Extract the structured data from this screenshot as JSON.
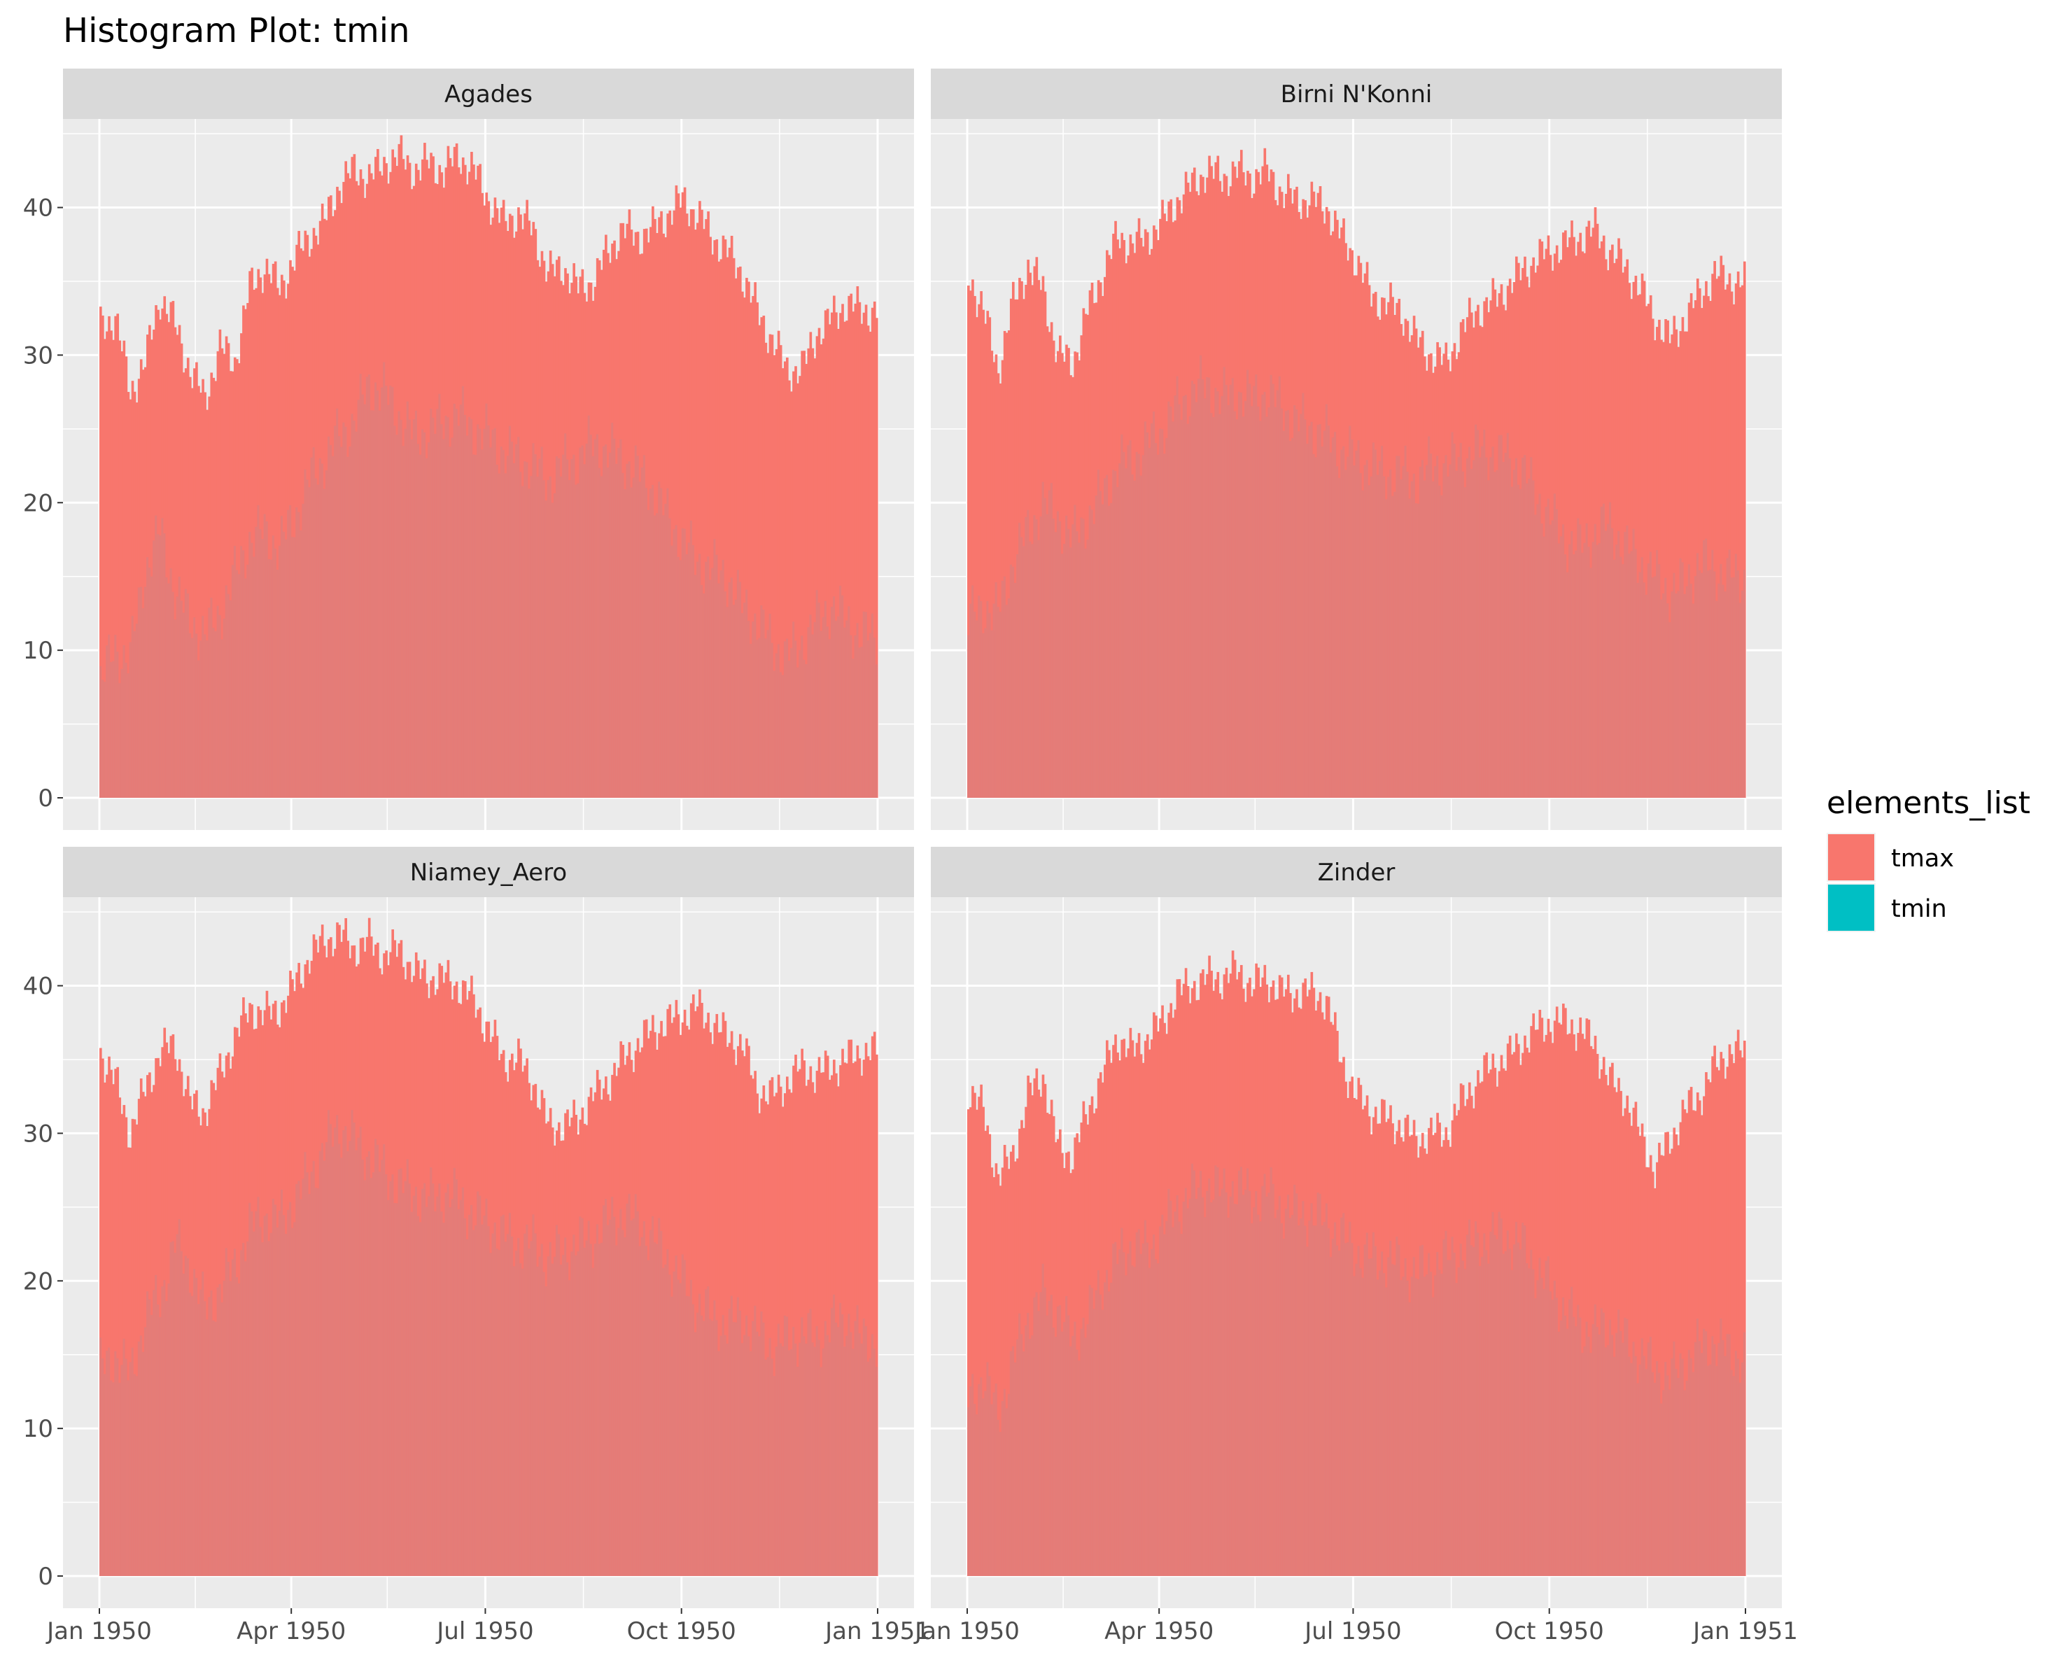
{
  "chart_data": {
    "type": "bar",
    "title": "Histogram Plot: tmin",
    "xlabel": "",
    "ylabel": "",
    "x_range": [
      "1950-01-01",
      "1951-01-01"
    ],
    "ylim": [
      0,
      46
    ],
    "y_ticks": [
      0,
      10,
      20,
      30,
      40
    ],
    "y_tick_labels": [
      "0",
      "10",
      "20",
      "30",
      "40"
    ],
    "x_ticks": [
      "1950-01-01",
      "1950-04-01",
      "1950-07-01",
      "1950-10-01",
      "1951-01-01"
    ],
    "x_tick_labels_left": [
      "Jan 1950",
      "Apr 1950",
      "Jul 1950",
      "Oct 1950",
      "Jan 1951"
    ],
    "x_tick_labels_right": [
      "Jan 1950",
      "Apr 1950",
      "Jul 1950",
      "Oct 1950",
      "Jan 1951"
    ],
    "grid": true,
    "facet_layout": "2x2",
    "legend": {
      "title": "elements_list",
      "position": "right",
      "items": [
        {
          "label": "tmax",
          "color": "#F8766D"
        },
        {
          "label": "tmin",
          "color": "#00BFC4"
        }
      ]
    },
    "series_colors": {
      "tmax": "#F8766D",
      "tmin_overlay": "#E07E7A"
    },
    "facets": [
      {
        "name": "Agades",
        "tmax_weekly": [
          32.0,
          32.5,
          27.5,
          29.5,
          34.0,
          32.0,
          29.0,
          27.0,
          30.5,
          29.5,
          34.5,
          36.0,
          34.5,
          36.5,
          38.0,
          39.0,
          41.5,
          42.5,
          42.0,
          43.0,
          43.5,
          42.5,
          43.0,
          42.5,
          43.5,
          42.5,
          40.5,
          39.0,
          39.5,
          38.5,
          35.5,
          36.0,
          34.5,
          35.0,
          37.0,
          38.5,
          38.0,
          38.5,
          39.5,
          40.5,
          39.5,
          38.0,
          37.0,
          35.5,
          33.0,
          31.0,
          29.0,
          29.0,
          31.5,
          32.5,
          33.5,
          33.0
        ],
        "tmin_weekly": [
          8.0,
          10.0,
          9.5,
          15.5,
          18.0,
          14.0,
          12.0,
          11.0,
          12.5,
          15.0,
          17.5,
          18.0,
          17.0,
          19.0,
          21.5,
          23.0,
          24.5,
          25.5,
          28.0,
          27.5,
          26.0,
          24.5,
          25.0,
          25.5,
          26.0,
          25.0,
          24.5,
          23.5,
          23.0,
          22.5,
          21.5,
          22.5,
          23.0,
          24.0,
          23.5,
          23.0,
          22.0,
          21.0,
          19.0,
          17.5,
          16.0,
          15.5,
          15.0,
          13.0,
          12.0,
          10.5,
          9.5,
          10.5,
          12.0,
          13.0,
          12.0,
          11.0
        ]
      },
      {
        "name": "Birni N'Konni",
        "tmax_weekly": [
          35.5,
          33.0,
          29.0,
          33.5,
          36.0,
          34.5,
          30.0,
          29.5,
          33.0,
          35.5,
          38.0,
          37.5,
          38.0,
          39.0,
          40.5,
          41.5,
          42.5,
          42.0,
          42.5,
          42.0,
          42.5,
          41.0,
          40.5,
          40.5,
          40.0,
          38.0,
          36.5,
          34.0,
          33.5,
          33.0,
          31.0,
          30.0,
          29.5,
          31.5,
          33.0,
          33.5,
          34.5,
          35.5,
          36.5,
          37.0,
          37.5,
          38.0,
          38.5,
          37.0,
          36.0,
          34.5,
          32.5,
          31.0,
          32.5,
          34.0,
          35.5,
          35.0
        ],
        "tmin_weekly": [
          12.0,
          13.0,
          12.5,
          16.0,
          18.0,
          20.0,
          19.0,
          17.5,
          19.0,
          20.5,
          22.5,
          23.0,
          24.0,
          25.0,
          26.5,
          27.5,
          28.0,
          27.0,
          27.5,
          27.0,
          27.5,
          26.5,
          25.5,
          25.0,
          24.5,
          23.5,
          23.0,
          22.5,
          22.0,
          22.0,
          21.5,
          22.5,
          22.5,
          23.0,
          23.5,
          23.5,
          23.0,
          22.5,
          20.5,
          19.0,
          17.5,
          17.0,
          18.0,
          18.5,
          17.0,
          16.0,
          15.0,
          14.0,
          14.5,
          16.0,
          15.5,
          15.0
        ]
      },
      {
        "name": "Niamey_Aero",
        "tmax_weekly": [
          35.5,
          33.5,
          30.0,
          33.0,
          35.5,
          36.0,
          32.0,
          31.5,
          34.0,
          36.5,
          38.5,
          38.0,
          38.5,
          40.0,
          42.0,
          43.0,
          43.5,
          42.5,
          43.0,
          42.0,
          42.5,
          41.0,
          40.5,
          40.5,
          40.0,
          39.0,
          37.0,
          35.0,
          35.0,
          33.5,
          30.5,
          30.5,
          31.0,
          32.5,
          33.5,
          35.0,
          36.0,
          37.0,
          37.5,
          38.0,
          38.5,
          37.5,
          36.5,
          36.0,
          33.0,
          32.5,
          33.5,
          34.5,
          34.0,
          34.5,
          35.0,
          35.5
        ],
        "tmin_weekly": [
          14.0,
          15.0,
          13.5,
          17.5,
          19.0,
          22.5,
          21.0,
          18.0,
          19.5,
          21.0,
          23.5,
          24.5,
          24.0,
          25.5,
          27.0,
          29.0,
          30.5,
          29.5,
          28.5,
          27.5,
          26.5,
          26.0,
          25.5,
          26.0,
          25.5,
          24.5,
          24.0,
          23.0,
          22.5,
          22.5,
          21.5,
          22.0,
          22.5,
          23.0,
          24.0,
          24.5,
          24.0,
          23.0,
          21.5,
          20.0,
          18.5,
          17.5,
          17.0,
          17.5,
          16.5,
          15.5,
          16.0,
          16.5,
          16.0,
          17.0,
          17.5,
          16.0
        ]
      },
      {
        "name": "Zinder",
        "tmax_weekly": [
          33.0,
          31.5,
          27.0,
          28.5,
          32.5,
          34.0,
          29.0,
          28.5,
          31.5,
          34.0,
          36.5,
          35.5,
          36.5,
          37.5,
          39.5,
          40.0,
          40.5,
          40.5,
          41.0,
          40.0,
          40.5,
          39.5,
          39.5,
          39.5,
          39.0,
          35.0,
          32.5,
          31.5,
          31.0,
          30.5,
          29.5,
          30.0,
          30.0,
          32.0,
          33.5,
          34.5,
          35.0,
          36.0,
          37.0,
          37.5,
          37.5,
          37.0,
          36.0,
          33.5,
          32.5,
          30.0,
          27.5,
          29.5,
          31.5,
          32.5,
          34.5,
          35.5
        ],
        "tmin_weekly": [
          12.0,
          13.5,
          11.0,
          14.5,
          17.5,
          19.0,
          18.0,
          16.0,
          17.5,
          20.0,
          21.5,
          22.5,
          22.0,
          23.5,
          25.0,
          26.0,
          26.5,
          26.0,
          26.5,
          25.5,
          26.0,
          25.0,
          24.5,
          24.5,
          24.0,
          23.0,
          22.0,
          21.5,
          21.5,
          21.0,
          20.5,
          21.0,
          21.5,
          22.0,
          22.5,
          23.0,
          23.0,
          22.5,
          21.0,
          19.5,
          18.0,
          17.0,
          16.5,
          17.0,
          16.0,
          15.0,
          14.0,
          13.5,
          14.5,
          15.5,
          16.0,
          15.0
        ]
      }
    ]
  }
}
